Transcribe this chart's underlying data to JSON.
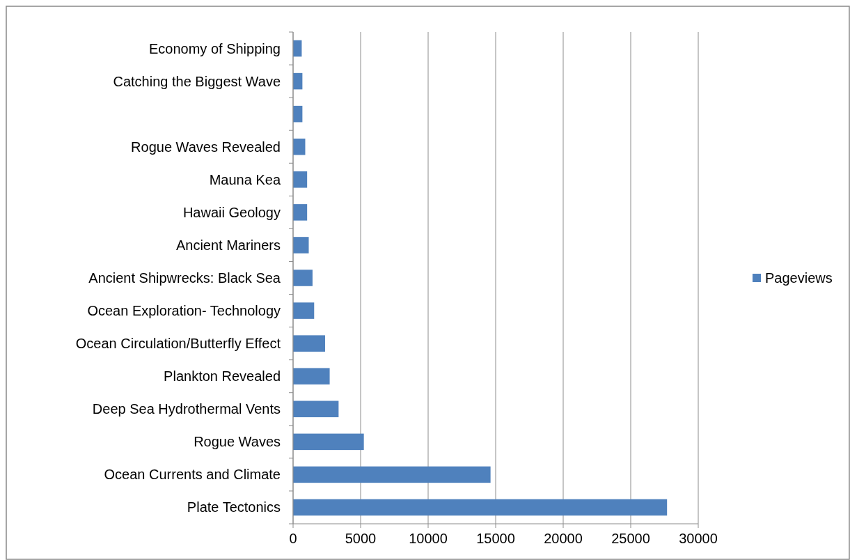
{
  "chart_data": {
    "type": "bar",
    "orientation": "horizontal",
    "categories": [
      "Economy of Shipping",
      "Catching the Biggest Wave",
      null,
      "Rogue Waves Revealed",
      "Mauna Kea",
      "Hawaii Geology",
      "Ancient Mariners",
      "Ancient Shipwrecks: Black Sea",
      "Ocean Exploration- Technology",
      "Ocean Circulation/Butterfly Effect",
      "Plankton Revealed",
      "Deep Sea Hydrothermal Vents",
      "Rogue Waves",
      "Ocean Currents and Climate",
      "Plate Tectonics"
    ],
    "series": [
      {
        "name": "Pageviews",
        "color": "#4f81bd",
        "values": [
          640,
          690,
          690,
          900,
          1040,
          1040,
          1160,
          1440,
          1560,
          2370,
          2710,
          3370,
          5240,
          14620,
          27690
        ]
      }
    ],
    "xlim": [
      0,
      30000
    ],
    "xticks": [
      0,
      5000,
      10000,
      15000,
      20000,
      25000,
      30000
    ],
    "grid": "x",
    "legend": "right"
  }
}
